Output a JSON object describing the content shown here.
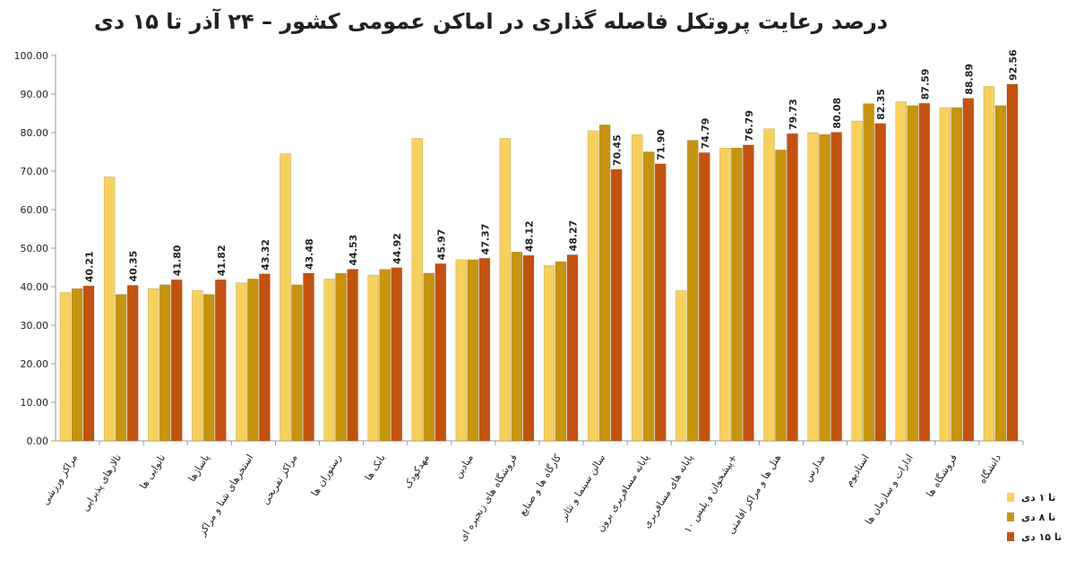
{
  "chart_data": {
    "type": "bar",
    "title": "درصد رعایت پروتکل فاصله گذاری در اماکن عمومی کشور – ۲۴ آذر تا ۱۵ دی",
    "categories": [
      "مراکز ورزشی",
      "تالارهای پذیرایی",
      "نانوایی ها",
      "پاساژها",
      "استخرهای شنا و مراکز",
      "مراکز تفریحی",
      "رستوران ها",
      "بانک ها",
      "مهدکودک",
      "میادین",
      "فروشگاه های زنجیره ای",
      "کارگاه ها و صنایع",
      "سالن سینما و تئاتر",
      "پایانه مسافربری برون",
      "پایانه های مسافربری",
      "پیشخوان و پلیس ۱۰+",
      "هتل ها و مراکز اقامتی",
      "مدارس",
      "استادیوم",
      "ادارات و سازمان ها",
      "فروشگاه ها",
      "دانشگاه"
    ],
    "series": [
      {
        "name": "تا ۱ دی",
        "color": "#f7d15a",
        "values": [
          38.5,
          68.5,
          39.5,
          39,
          41,
          74.5,
          42,
          43,
          78.5,
          47,
          78.5,
          45.5,
          80.5,
          79.5,
          39,
          76,
          81,
          80,
          83,
          88,
          86.5,
          92
        ]
      },
      {
        "name": "تا ۸ دی",
        "color": "#c8940c",
        "values": [
          39.5,
          38,
          40.5,
          38,
          42,
          40.5,
          43.5,
          44.5,
          43.5,
          47,
          49,
          46.5,
          82,
          75,
          78,
          76,
          75.5,
          79.5,
          87.5,
          87,
          86.5,
          87
        ]
      },
      {
        "name": "تا ۱۵ دی",
        "color": "#c4520f",
        "values": [
          40.21,
          40.35,
          41.8,
          41.82,
          43.32,
          43.48,
          44.53,
          44.92,
          45.97,
          47.37,
          48.12,
          48.27,
          70.45,
          71.9,
          74.79,
          76.79,
          79.73,
          80.08,
          82.35,
          87.59,
          88.89,
          92.56
        ],
        "value_labels": [
          "40.21",
          "40.35",
          "41.80",
          "41.82",
          "43.32",
          "43.48",
          "44.53",
          "44.92",
          "45.97",
          "47.37",
          "48.12",
          "48.27",
          "70.45",
          "71.90",
          "74.79",
          "76.79",
          "79.73",
          "80.08",
          "82.35",
          "87.59",
          "88.89",
          "92.56"
        ]
      }
    ],
    "ylim": [
      0,
      100
    ],
    "yticks": [
      {
        "value": 0,
        "label": "0.00"
      },
      {
        "value": 10,
        "label": "10.00"
      },
      {
        "value": 20,
        "label": "20.00"
      },
      {
        "value": 30,
        "label": "30.00"
      },
      {
        "value": 40,
        "label": "40.00"
      },
      {
        "value": 50,
        "label": "50.00"
      },
      {
        "value": 60,
        "label": "60.00"
      },
      {
        "value": 70,
        "label": "70.00"
      },
      {
        "value": 80,
        "label": "80.00"
      },
      {
        "value": 90,
        "label": "90.00"
      },
      {
        "value": 100,
        "label": "100.00"
      }
    ],
    "grid": false
  }
}
